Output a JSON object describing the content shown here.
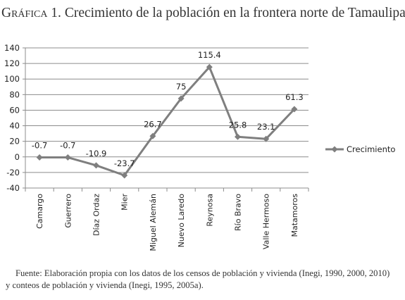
{
  "title": {
    "prefix": "Gráfica 1.",
    "text": "Crecimiento de la población en la frontera norte de Tamaulipas"
  },
  "footnote": {
    "line1": "Fuente: Elaboración propia con los datos de los censos de población y vivienda (Inegi, 1990, 2000, 2010)",
    "line2": "y conteos de población y vivienda (Inegi, 1995, 2005a)."
  },
  "chart_data": {
    "type": "line",
    "categories": [
      "Camargo",
      "Guerrero",
      "Díaz Ordaz",
      "Mier",
      "Miguel Alemán",
      "Nuevo Laredo",
      "Reynosa",
      "Río Bravo",
      "Valle Hermoso",
      "Matamoros"
    ],
    "series": [
      {
        "name": "Crecimiento",
        "values": [
          -0.7,
          -0.7,
          -10.9,
          -23.7,
          26.7,
          75,
          115.4,
          25.8,
          23.1,
          61.3
        ],
        "labels": [
          "-0.7",
          "-0.7",
          "-10.9",
          "-23.7",
          "26.7",
          "75",
          "115.4",
          "25.8",
          "23.1",
          "61.3"
        ]
      }
    ],
    "ylim": [
      -40,
      140
    ],
    "yticks": [
      -40,
      -20,
      0,
      20,
      40,
      60,
      80,
      100,
      120,
      140
    ],
    "grid": true,
    "legend": "right",
    "colors": {
      "line": "#7f7f7f",
      "grid": "#8c8c8c",
      "text": "#222222"
    }
  }
}
